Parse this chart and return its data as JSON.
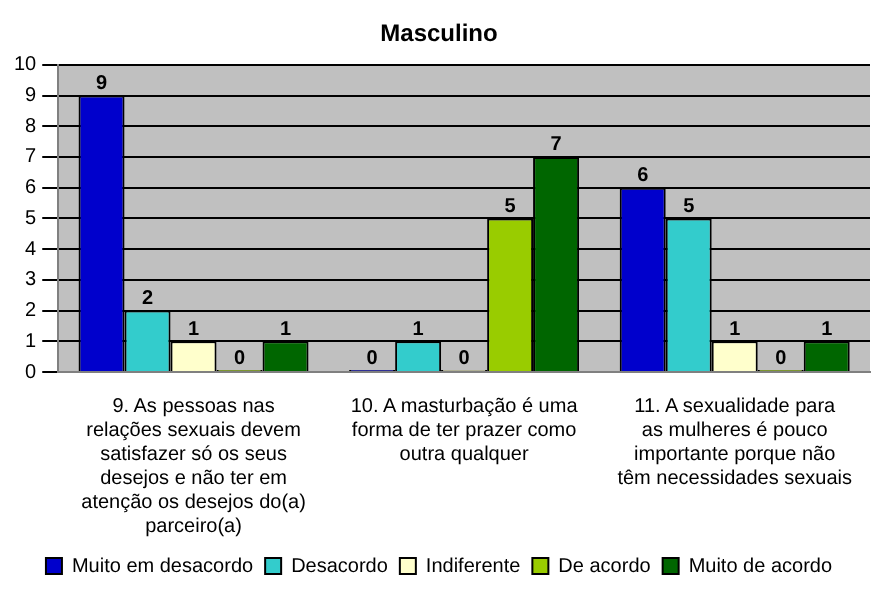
{
  "chart_data": {
    "type": "bar",
    "title": "Masculino",
    "categories": [
      "9. As pessoas nas relações sexuais devem satisfazer só os seus desejos e não ter em atenção os desejos do(a) parceiro(a)",
      "10. A masturbação é uma forma de ter prazer como outra qualquer",
      "11. A sexualidade para as mulheres é pouco importante porque não têm necessidades sexuais"
    ],
    "series": [
      {
        "name": "Muito em desacordo",
        "color": "#0000cc",
        "values": [
          9,
          0,
          6
        ]
      },
      {
        "name": "Desacordo",
        "color": "#33cccc",
        "values": [
          2,
          1,
          5
        ]
      },
      {
        "name": "Indiferente",
        "color": "#ffffcc",
        "values": [
          1,
          0,
          1
        ]
      },
      {
        "name": "De acordo",
        "color": "#99cc00",
        "values": [
          0,
          5,
          0
        ]
      },
      {
        "name": "Muito de acordo",
        "color": "#006600",
        "values": [
          1,
          7,
          1
        ]
      }
    ],
    "ylim": [
      0,
      10
    ],
    "yticks": [
      0,
      1,
      2,
      3,
      4,
      5,
      6,
      7,
      8,
      9,
      10
    ],
    "grid": "y",
    "legend": "bottom",
    "data_labels": true
  }
}
